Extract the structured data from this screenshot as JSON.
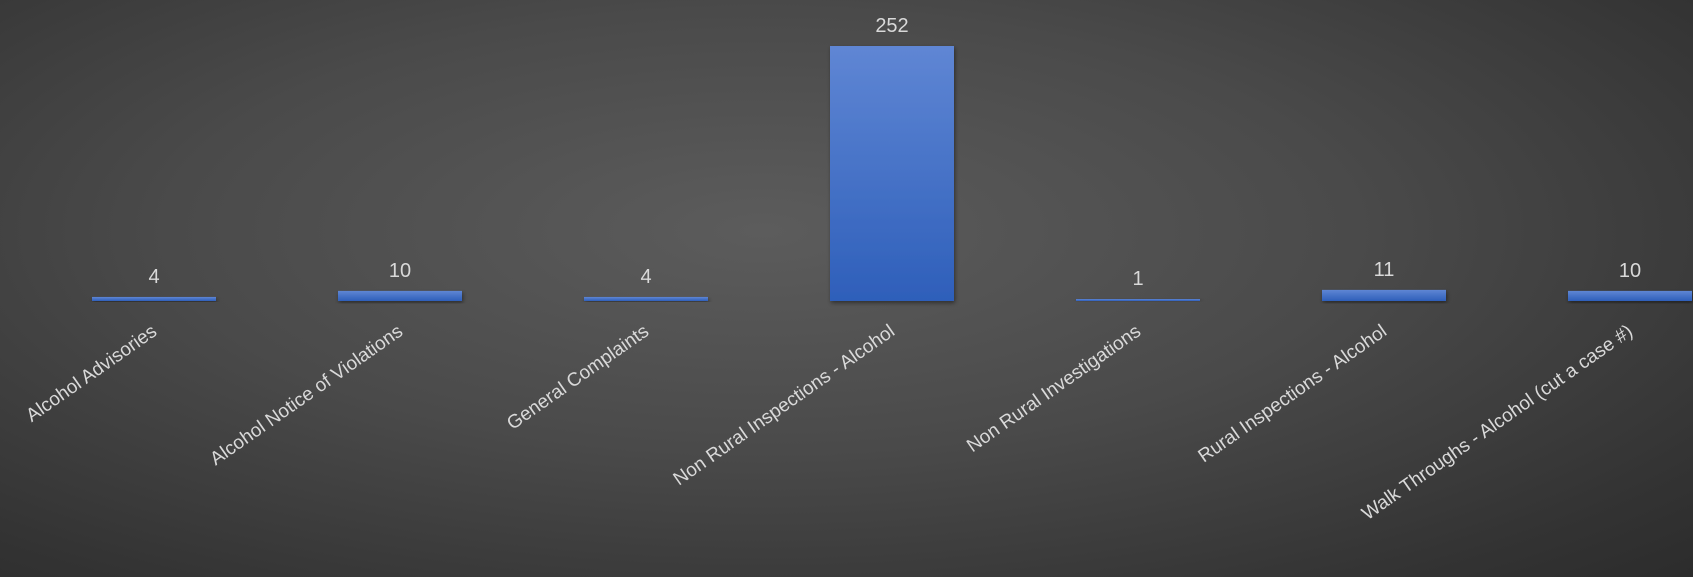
{
  "chart_data": {
    "type": "bar",
    "title": "",
    "xlabel": "",
    "ylabel": "",
    "categories": [
      "Alcohol Advisories",
      "Alcohol Notice of Violations",
      "General Complaints",
      "Non Rural Inspections - Alcohol",
      "Non Rural Investigations",
      "Rural Inspections - Alcohol",
      "Walk Throughs - Alcohol (cut a case #)"
    ],
    "values": [
      4,
      10,
      4,
      252,
      1,
      11,
      10
    ],
    "ylim": [
      0,
      252
    ],
    "grid": false,
    "legend": "none",
    "data_labels": true,
    "colors": {
      "bar_top": "#5f86d4",
      "bar_bottom": "#2e5fba",
      "text": "#d9d9d9",
      "background_center": "#5c5c5c",
      "background_edge": "#2c2c2c"
    }
  }
}
